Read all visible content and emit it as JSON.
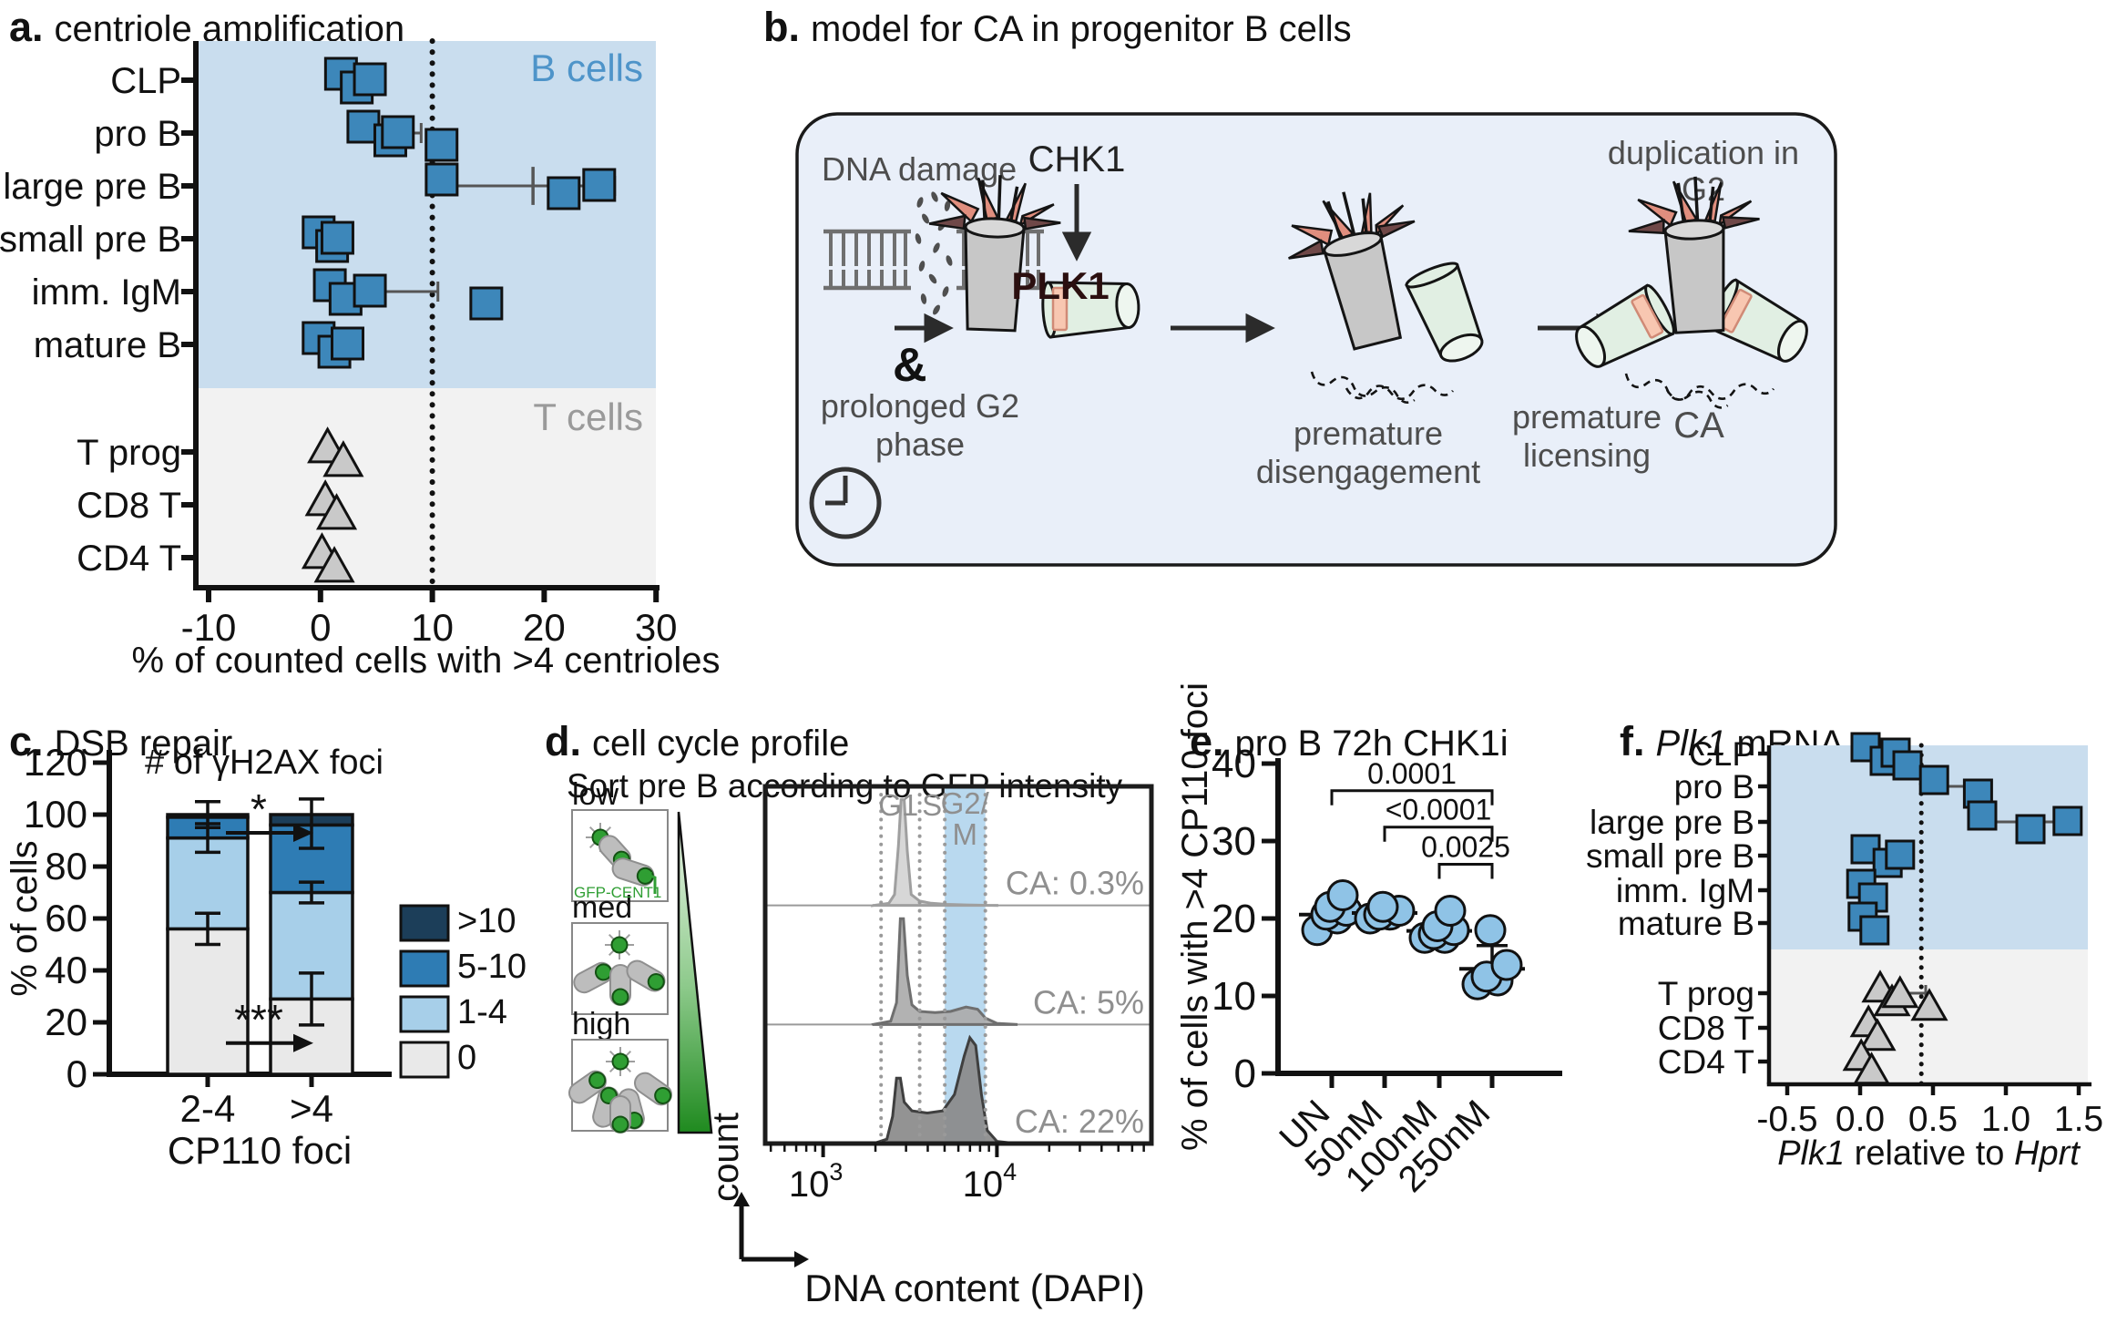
{
  "figure": {
    "panels": {
      "a": {
        "letter": "a.",
        "title": "centriole amplification"
      },
      "b": {
        "letter": "b.",
        "title": "model for CA in progenitor B cells",
        "labels": {
          "dna_damage": "DNA damage",
          "amp": "&",
          "prolonged_1": "prolonged G2",
          "prolonged_2": "phase",
          "chk1": "CHK1",
          "plk1": "PLK1",
          "disengage_1": "premature",
          "disengage_2": "disengagement",
          "licensing_1": "premature",
          "licensing_2": "licensing",
          "duplication_1": "duplication in",
          "duplication_2": "G2",
          "ca": "CA"
        }
      },
      "c": {
        "letter": "c.",
        "title": "DSB repair"
      },
      "d": {
        "letter": "d.",
        "title": "cell cycle profile",
        "subtitle": "Sort pre B according to GFP intensity",
        "sort_labels": [
          "low",
          "med",
          "high"
        ],
        "gfp_label": "GFP-CENT1",
        "ylabel": "count",
        "xlabel": "DNA content (DAPI)"
      },
      "e": {
        "letter": "e.",
        "title": "pro B 72h CHK1i"
      },
      "f": {
        "letter": "f.",
        "title_gene": "Plk1",
        "title_rest": " mRNA"
      }
    },
    "colors": {
      "square_blue": "#3d87ba",
      "triangle_gray": "#c9c9c9",
      "region_b": "#c9ddee",
      "region_t": "#f2f2f2",
      "region_b_label": "#4e94c9",
      "region_t_label": "#9a9a9a",
      "circle_blue": "#8fc3e6",
      "band_blue": "#b9d9ef",
      "green": "#2f9e33",
      "model_box_bg": "#e9eff9"
    }
  },
  "chart_data": [
    {
      "id": "a",
      "type": "scatter",
      "title": "centriole amplification",
      "xlabel": "% of counted cells with >4 centrioles",
      "xlim": [
        -10,
        30
      ],
      "xticks": [
        -10,
        0,
        10,
        20,
        30
      ],
      "dotted_line_x": 10,
      "region_labels": {
        "b": "B cells",
        "t": "T cells"
      },
      "groups": [
        {
          "label": "CLP",
          "section": "B",
          "marker": "square",
          "values": [
            2,
            3,
            4.5
          ]
        },
        {
          "label": "pro B",
          "section": "B",
          "marker": "square",
          "values": [
            4,
            6,
            7,
            10.5
          ],
          "err": [
            6.5,
            9
          ]
        },
        {
          "label": "large pre B",
          "section": "B",
          "marker": "square",
          "values": [
            11,
            21.5,
            25
          ],
          "err": [
            11,
            26.3
          ],
          "err_mid": 19
        },
        {
          "label": "small pre B",
          "section": "B",
          "marker": "square",
          "values": [
            0,
            0.8,
            1.6
          ]
        },
        {
          "label": "imm. IgM",
          "section": "B",
          "marker": "square",
          "values": [
            1,
            2,
            4.5,
            14.5
          ],
          "err": [
            -0.5,
            10.5
          ]
        },
        {
          "label": "mature B",
          "section": "B",
          "marker": "square",
          "values": [
            0,
            1,
            2.5
          ]
        },
        {
          "label": "T prog",
          "section": "T",
          "marker": "triangle",
          "values": [
            0.8,
            1.8
          ]
        },
        {
          "label": "CD8 T",
          "section": "T",
          "marker": "triangle",
          "values": [
            0.6,
            1.2
          ]
        },
        {
          "label": "CD4 T",
          "section": "T",
          "marker": "triangle",
          "values": [
            0.3,
            1
          ]
        }
      ]
    },
    {
      "id": "c",
      "type": "bar",
      "inner_title": "# of γH2AX foci",
      "ylabel": "% of cells",
      "ylim": [
        0,
        120
      ],
      "yticks": [
        0,
        20,
        40,
        60,
        80,
        100,
        120
      ],
      "categories": [
        "2-4",
        ">4"
      ],
      "xlabel": "CP110 foci",
      "legend": [
        {
          "label": ">10",
          "color": "#1c3e59"
        },
        {
          "label": "5-10",
          "color": "#2e7cb4"
        },
        {
          "label": "1-4",
          "color": "#a7cfe9"
        },
        {
          "label": "0",
          "color": "#e9e9e9"
        }
      ],
      "stack_order_bottom_up": [
        "0",
        "1-4",
        "5-10",
        ">10"
      ],
      "values": {
        "2-4": [
          56,
          35,
          8,
          1
        ],
        ">4": [
          29,
          41,
          26,
          4
        ]
      },
      "error_bars": {
        "2-4": [
          {
            "at": 56,
            "lo": 50,
            "hi": 62
          },
          {
            "at": 91,
            "lo": 85.5,
            "hi": 96.5
          },
          {
            "at": 100,
            "lo": 95,
            "hi": 105
          }
        ],
        ">4": [
          {
            "at": 29,
            "lo": 19,
            "hi": 39
          },
          {
            "at": 70,
            "lo": 66,
            "hi": 74
          },
          {
            "at": 100,
            "lo": 87,
            "hi": 106
          }
        ]
      },
      "annotations": [
        {
          "label": "*",
          "y": 93
        },
        {
          "label": "***",
          "y": 12
        }
      ]
    },
    {
      "id": "d",
      "type": "area",
      "phase_labels": [
        "G1",
        "S",
        "G2/",
        "M"
      ],
      "rows": [
        {
          "level": "low",
          "ca_label": "CA: 0.3%"
        },
        {
          "level": "med",
          "ca_label": "CA: 5%"
        },
        {
          "level": "high",
          "ca_label": "CA: 22%"
        }
      ],
      "xticks": [
        {
          "base": "10",
          "exp": "3"
        },
        {
          "base": "10",
          "exp": "4"
        }
      ],
      "xlabel": "DNA content (DAPI)",
      "ylabel": "count"
    },
    {
      "id": "e",
      "type": "scatter",
      "title": "pro B 72h CHK1i",
      "ylabel": "% of cells with >4 CP110 foci",
      "ylim": [
        0,
        40
      ],
      "yticks": [
        0,
        10,
        20,
        30,
        40
      ],
      "categories": [
        "UN",
        "50nM",
        "100nM",
        "250nM"
      ],
      "points": {
        "UN": [
          18.5,
          20,
          20.5,
          21,
          21.5,
          23
        ],
        "50nM": [
          20,
          20.5,
          20.5,
          21,
          21.5
        ],
        "100nM": [
          17.5,
          17.5,
          18,
          18.5,
          19,
          21
        ],
        "250nM": [
          11.5,
          12,
          12.5,
          14,
          18.5
        ]
      },
      "means": [
        20.5,
        20.7,
        18.4,
        13.5
      ],
      "errors": [
        [
          19.4,
          21.6
        ],
        [
          20,
          21.4
        ],
        [
          17.6,
          19.2
        ],
        [
          13.4,
          16.5
        ]
      ],
      "brackets": [
        {
          "from": 0,
          "to": 3,
          "y": 36.5,
          "label": "0.0001"
        },
        {
          "from": 1,
          "to": 3,
          "y": 31.8,
          "label": "<0.0001"
        },
        {
          "from": 2,
          "to": 3,
          "y": 27,
          "label": "0.0025"
        }
      ]
    },
    {
      "id": "f",
      "type": "scatter",
      "xlabel_parts": [
        {
          "t": "Plk1",
          "i": true
        },
        {
          "t": " relative to ",
          "i": false
        },
        {
          "t": "Hprt",
          "i": true
        }
      ],
      "xlim": [
        -0.5,
        1.5
      ],
      "xticks": [
        {
          "v": -0.5,
          "label": "-0.5"
        },
        {
          "v": 0,
          "label": "0.0"
        },
        {
          "v": 0.5,
          "label": "0.5"
        },
        {
          "v": 1,
          "label": "1.0"
        },
        {
          "v": 1.5,
          "label": "1.5"
        }
      ],
      "dotted_line_x": 0.42,
      "groups": [
        {
          "label": "CLP",
          "section": "B",
          "marker": "square",
          "values": [
            0.05,
            0.15,
            0.25,
            0.3
          ],
          "err": [
            0.05,
            0.32
          ]
        },
        {
          "label": "pro B",
          "section": "B",
          "marker": "square",
          "values": [
            0.52,
            0.79
          ],
          "connect": true
        },
        {
          "label": "large pre B",
          "section": "B",
          "marker": "square",
          "values": [
            0.85,
            1.15,
            1.43
          ],
          "connect": true
        },
        {
          "label": "small pre B",
          "section": "B",
          "marker": "square",
          "values": [
            0.05,
            0.17,
            0.28
          ]
        },
        {
          "label": "imm. IgM",
          "section": "B",
          "marker": "square",
          "values": [
            0.02,
            0.07
          ]
        },
        {
          "label": "mature B",
          "section": "B",
          "marker": "square",
          "values": [
            0.03,
            0.08
          ]
        },
        {
          "label": "T prog",
          "section": "T",
          "marker": "triangle",
          "values": [
            0.15,
            0.2,
            0.28,
            0.45
          ],
          "err": [
            0.12,
            0.45
          ],
          "connect": true
        },
        {
          "label": "CD8 T",
          "section": "T",
          "marker": "triangle",
          "values": [
            0.07,
            0.1
          ]
        },
        {
          "label": "CD4 T",
          "section": "T",
          "marker": "triangle",
          "values": [
            0.02,
            0.06
          ]
        }
      ]
    }
  ]
}
